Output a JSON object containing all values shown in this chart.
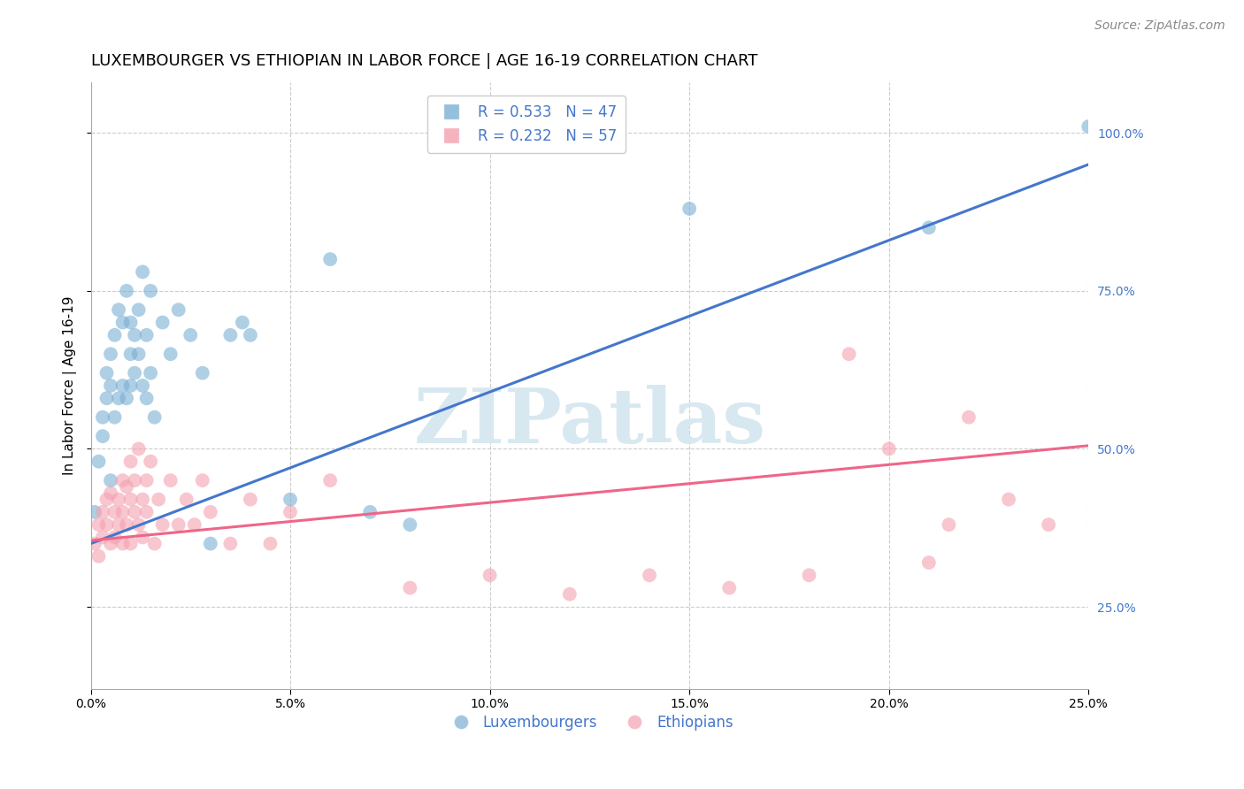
{
  "title": "LUXEMBOURGER VS ETHIOPIAN IN LABOR FORCE | AGE 16-19 CORRELATION CHART",
  "source": "Source: ZipAtlas.com",
  "ylabel_left": "In Labor Force | Age 16-19",
  "right_ytick_values": [
    1.0,
    0.75,
    0.5,
    0.25
  ],
  "xlim": [
    0.0,
    0.25
  ],
  "ylim": [
    0.12,
    1.08
  ],
  "blue_R": 0.533,
  "blue_N": 47,
  "pink_R": 0.232,
  "pink_N": 57,
  "blue_color": "#7BAFD4",
  "pink_color": "#F4A0B0",
  "blue_line_color": "#4477CC",
  "pink_line_color": "#EE6688",
  "legend_labels": [
    "Luxembourgers",
    "Ethiopians"
  ],
  "watermark": "ZIPatlas",
  "watermark_color": "#D8E8F0",
  "blue_scatter_x": [
    0.001,
    0.002,
    0.003,
    0.003,
    0.004,
    0.004,
    0.005,
    0.005,
    0.005,
    0.006,
    0.006,
    0.007,
    0.007,
    0.008,
    0.008,
    0.009,
    0.009,
    0.01,
    0.01,
    0.01,
    0.011,
    0.011,
    0.012,
    0.012,
    0.013,
    0.013,
    0.014,
    0.014,
    0.015,
    0.015,
    0.016,
    0.018,
    0.02,
    0.022,
    0.025,
    0.028,
    0.03,
    0.035,
    0.038,
    0.04,
    0.05,
    0.06,
    0.07,
    0.08,
    0.15,
    0.21,
    0.25
  ],
  "blue_scatter_y": [
    0.4,
    0.48,
    0.52,
    0.55,
    0.58,
    0.62,
    0.45,
    0.6,
    0.65,
    0.55,
    0.68,
    0.58,
    0.72,
    0.6,
    0.7,
    0.58,
    0.75,
    0.6,
    0.65,
    0.7,
    0.62,
    0.68,
    0.65,
    0.72,
    0.6,
    0.78,
    0.58,
    0.68,
    0.62,
    0.75,
    0.55,
    0.7,
    0.65,
    0.72,
    0.68,
    0.62,
    0.35,
    0.68,
    0.7,
    0.68,
    0.42,
    0.8,
    0.4,
    0.38,
    0.88,
    0.85,
    1.01
  ],
  "pink_scatter_x": [
    0.001,
    0.002,
    0.002,
    0.003,
    0.003,
    0.004,
    0.004,
    0.005,
    0.005,
    0.006,
    0.006,
    0.007,
    0.007,
    0.008,
    0.008,
    0.008,
    0.009,
    0.009,
    0.01,
    0.01,
    0.01,
    0.011,
    0.011,
    0.012,
    0.012,
    0.013,
    0.013,
    0.014,
    0.014,
    0.015,
    0.016,
    0.017,
    0.018,
    0.02,
    0.022,
    0.024,
    0.026,
    0.028,
    0.03,
    0.035,
    0.04,
    0.045,
    0.05,
    0.06,
    0.08,
    0.1,
    0.12,
    0.14,
    0.16,
    0.18,
    0.19,
    0.2,
    0.21,
    0.215,
    0.22,
    0.23,
    0.24
  ],
  "pink_scatter_y": [
    0.35,
    0.38,
    0.33,
    0.4,
    0.36,
    0.42,
    0.38,
    0.35,
    0.43,
    0.4,
    0.36,
    0.42,
    0.38,
    0.35,
    0.45,
    0.4,
    0.38,
    0.44,
    0.35,
    0.42,
    0.48,
    0.4,
    0.45,
    0.38,
    0.5,
    0.42,
    0.36,
    0.45,
    0.4,
    0.48,
    0.35,
    0.42,
    0.38,
    0.45,
    0.38,
    0.42,
    0.38,
    0.45,
    0.4,
    0.35,
    0.42,
    0.35,
    0.4,
    0.45,
    0.28,
    0.3,
    0.27,
    0.3,
    0.28,
    0.3,
    0.65,
    0.5,
    0.32,
    0.38,
    0.55,
    0.42,
    0.38
  ],
  "blue_line_x": [
    0.0,
    0.25
  ],
  "blue_line_y": [
    0.35,
    0.95
  ],
  "pink_line_x": [
    0.0,
    0.25
  ],
  "pink_line_y": [
    0.355,
    0.505
  ],
  "grid_color": "#CCCCCC",
  "background_color": "#FFFFFF",
  "title_fontsize": 13,
  "axis_label_fontsize": 11,
  "tick_fontsize": 10,
  "legend_fontsize": 12,
  "source_fontsize": 10
}
